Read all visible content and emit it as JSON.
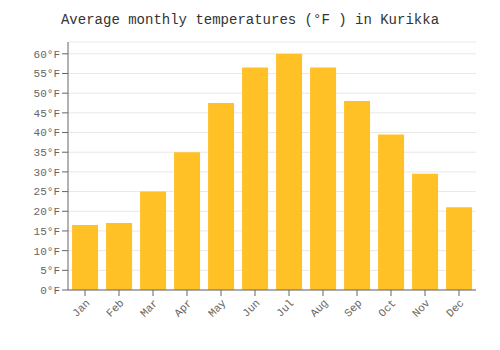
{
  "chart_data": {
    "type": "bar",
    "title": "Average monthly temperatures (°F ) in Kurikka",
    "categories": [
      "Jan",
      "Feb",
      "Mar",
      "Apr",
      "May",
      "Jun",
      "Jul",
      "Aug",
      "Sep",
      "Oct",
      "Nov",
      "Dec"
    ],
    "values": [
      16.5,
      17.0,
      25.0,
      35.0,
      47.5,
      56.5,
      60.0,
      56.5,
      48.0,
      39.5,
      29.5,
      21.0
    ],
    "color": "#FFC125",
    "ylim": [
      0,
      63
    ],
    "yticks": [
      {
        "value": 0,
        "label": "0°F"
      },
      {
        "value": 5,
        "label": "5°F"
      },
      {
        "value": 10,
        "label": "10°F"
      },
      {
        "value": 15,
        "label": "15°F"
      },
      {
        "value": 20,
        "label": "20°F"
      },
      {
        "value": 25,
        "label": "25°F"
      },
      {
        "value": 30,
        "label": "30°F"
      },
      {
        "value": 35,
        "label": "35°F"
      },
      {
        "value": 40,
        "label": "40°F"
      },
      {
        "value": 45,
        "label": "45°F"
      },
      {
        "value": 50,
        "label": "50°F"
      },
      {
        "value": 55,
        "label": "55°F"
      },
      {
        "value": 60,
        "label": "60°F"
      }
    ],
    "grid": true
  }
}
